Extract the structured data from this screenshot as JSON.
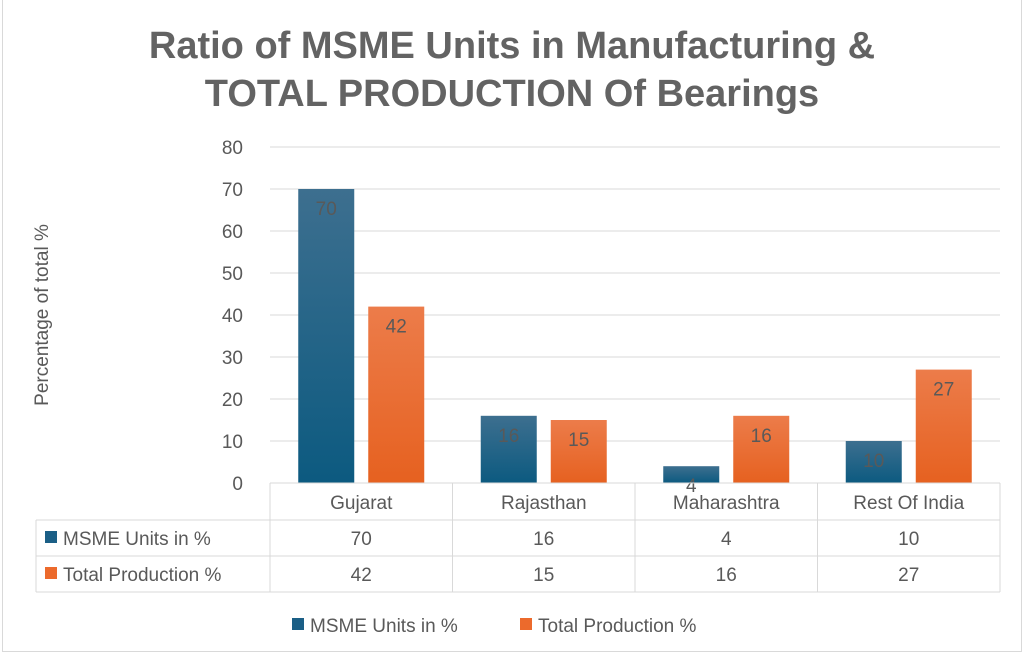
{
  "chart_data": {
    "type": "bar",
    "title_lines": [
      "Ratio of MSME Units in Manufacturing &",
      "TOTAL PRODUCTION Of Bearings"
    ],
    "ylabel": "Percentage of total %",
    "xlabel": "",
    "ylim": [
      0,
      80
    ],
    "yticks": [
      "0",
      "10",
      "20",
      "30",
      "40",
      "50",
      "60",
      "70",
      "80"
    ],
    "grid": true,
    "categories": [
      "Gujarat",
      "Rajasthan",
      "Maharashtra",
      "Rest Of India"
    ],
    "series": [
      {
        "name": "MSME Units in %",
        "values": [
          70,
          16,
          4,
          10
        ],
        "color": "#1b5f86"
      },
      {
        "name": "Total Production %",
        "values": [
          42,
          15,
          16,
          27
        ],
        "color": "#ec6a2c"
      }
    ],
    "data_table": true,
    "legend_position": "bottom"
  }
}
